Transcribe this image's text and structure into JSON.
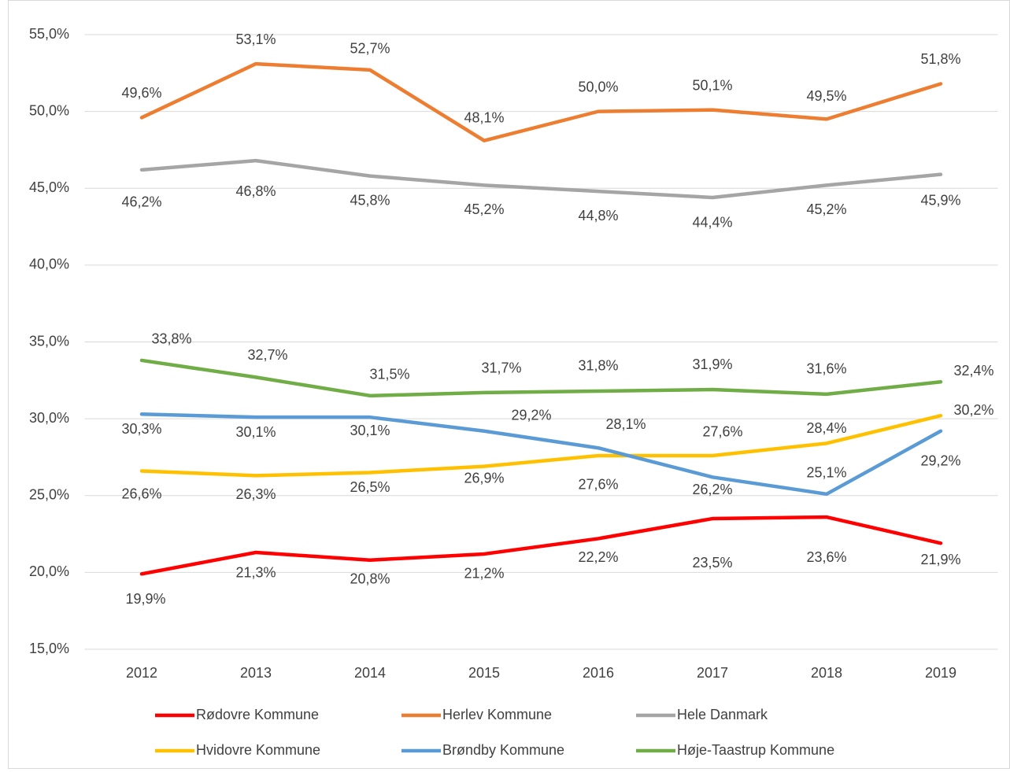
{
  "chart_data": {
    "type": "line",
    "categories": [
      "2012",
      "2013",
      "2014",
      "2015",
      "2016",
      "2017",
      "2018",
      "2019"
    ],
    "series": [
      {
        "name": "Rødovre Kommune",
        "color": "#ff0000",
        "values": [
          19.9,
          21.3,
          20.8,
          21.2,
          22.2,
          23.5,
          23.6,
          21.9
        ],
        "value_labels": [
          "19,9%",
          "21,3%",
          "20,8%",
          "21,2%",
          "22,2%",
          "23,5%",
          "23,6%",
          "21,9%"
        ]
      },
      {
        "name": "Herlev Kommune",
        "color": "#ed7d31",
        "values": [
          49.6,
          53.1,
          52.7,
          48.1,
          50.0,
          50.1,
          49.5,
          51.8
        ],
        "value_labels": [
          "49,6%",
          "53,1%",
          "52,7%",
          "48,1%",
          "50,0%",
          "50,1%",
          "49,5%",
          "51,8%"
        ]
      },
      {
        "name": "Hele Danmark",
        "color": "#a5a5a5",
        "values": [
          46.2,
          46.8,
          45.8,
          45.2,
          44.8,
          44.4,
          45.2,
          45.9
        ],
        "value_labels": [
          "46,2%",
          "46,8%",
          "45,8%",
          "45,2%",
          "44,8%",
          "44,4%",
          "45,2%",
          "45,9%"
        ]
      },
      {
        "name": "Hvidovre Kommune",
        "color": "#ffc000",
        "values": [
          26.6,
          26.3,
          26.5,
          26.9,
          27.6,
          27.6,
          28.4,
          30.2
        ],
        "value_labels": [
          "26,6%",
          "26,3%",
          "26,5%",
          "26,9%",
          "27,6%",
          "27,6%",
          "28,4%",
          "30,2%"
        ]
      },
      {
        "name": "Brøndby Kommune",
        "color": "#5b9bd5",
        "values": [
          30.3,
          30.1,
          30.1,
          29.2,
          28.1,
          26.2,
          25.1,
          29.2
        ],
        "value_labels": [
          "30,3%",
          "30,1%",
          "30,1%",
          "29,2%",
          "28,1%",
          "26,2%",
          "25,1%",
          "29,2%"
        ]
      },
      {
        "name": "Høje-Taastrup Kommune",
        "color": "#70ad47",
        "values": [
          33.8,
          32.7,
          31.5,
          31.7,
          31.8,
          31.9,
          31.6,
          32.4
        ],
        "value_labels": [
          "33,8%",
          "32,7%",
          "31,5%",
          "31,7%",
          "31,8%",
          "31,9%",
          "31,6%",
          "32,4%"
        ]
      }
    ],
    "ylim": [
      15,
      55
    ],
    "yticks": [
      {
        "value": 15,
        "label": "15,0%"
      },
      {
        "value": 20,
        "label": "20,0%"
      },
      {
        "value": 25,
        "label": "25,0%"
      },
      {
        "value": 30,
        "label": "30,0%"
      },
      {
        "value": 35,
        "label": "35,0%"
      },
      {
        "value": 40,
        "label": "40,0%"
      },
      {
        "value": 45,
        "label": "45,0%"
      },
      {
        "value": 50,
        "label": "50,0%"
      },
      {
        "value": 55,
        "label": "55,0%"
      }
    ],
    "grid": true,
    "legend": "bottom"
  }
}
